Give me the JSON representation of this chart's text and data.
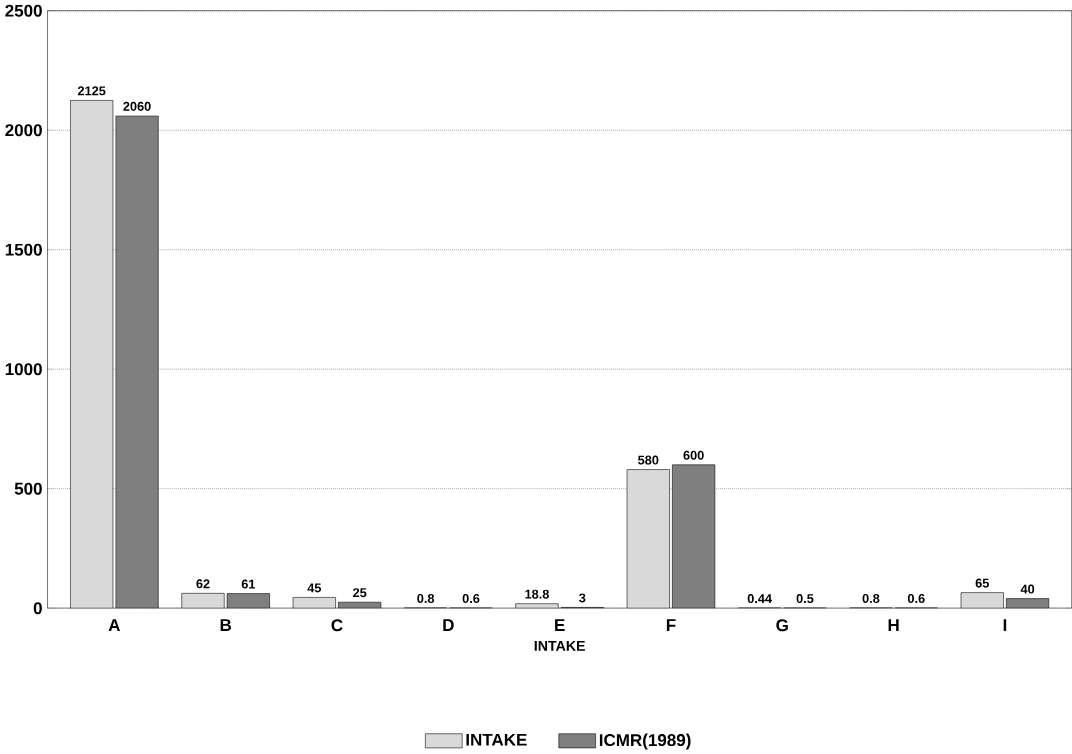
{
  "chart_data": {
    "type": "bar",
    "xlabel": "INTAKE",
    "categories": [
      "A",
      "B",
      "C",
      "D",
      "E",
      "F",
      "G",
      "H",
      "I"
    ],
    "series": [
      {
        "name": "INTAKE",
        "color": "#d9d9d9",
        "values": [
          2125,
          62,
          45,
          0.8,
          18.8,
          580,
          0.44,
          0.8,
          65
        ]
      },
      {
        "name": "ICMR(1989)",
        "color": "#7f7f7f",
        "values": [
          2060,
          61,
          25,
          0.6,
          3,
          600,
          0.5,
          0.6,
          40
        ]
      }
    ],
    "ylim": [
      0,
      2500
    ],
    "yticks": [
      0,
      500,
      1000,
      1500,
      2000,
      2500
    ],
    "grid": "y",
    "legend": "bottom",
    "data_labels": true
  }
}
